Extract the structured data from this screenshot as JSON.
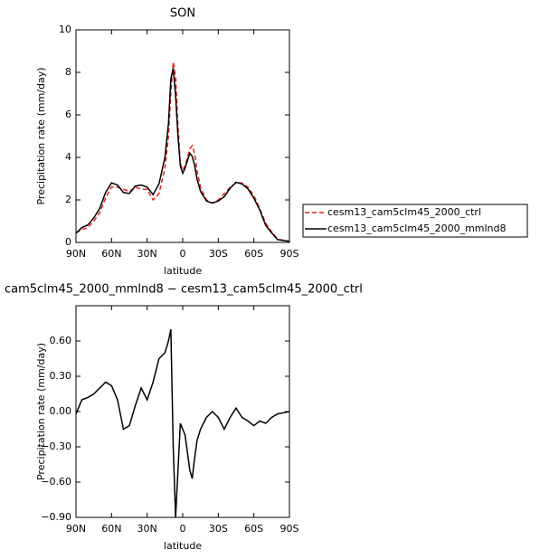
{
  "chart_data": [
    {
      "type": "line",
      "title": "SON",
      "xlabel": "latitude",
      "ylabel": "Precipitation rate (mm/day)",
      "x": [
        90,
        85,
        80,
        75,
        70,
        65,
        60,
        55,
        50,
        45,
        40,
        35,
        30,
        25,
        20,
        15,
        12,
        10,
        8,
        6,
        4,
        2,
        0,
        -2,
        -4,
        -6,
        -8,
        -10,
        -12,
        -15,
        -20,
        -25,
        -30,
        -35,
        -40,
        -45,
        -50,
        -55,
        -60,
        -65,
        -70,
        -75,
        -80,
        -85,
        -90
      ],
      "series": [
        {
          "name": "cesm13_cam5clm45_2000_ctrl",
          "color": "#e8201c",
          "style": "dashed",
          "values": [
            0.45,
            0.6,
            0.7,
            1.0,
            1.4,
            2.1,
            2.6,
            2.6,
            2.5,
            2.4,
            2.6,
            2.5,
            2.5,
            2.0,
            2.3,
            3.5,
            5.0,
            7.0,
            8.5,
            7.8,
            5.5,
            3.7,
            3.4,
            3.6,
            4.0,
            4.4,
            4.55,
            4.2,
            3.4,
            2.6,
            2.0,
            1.85,
            2.0,
            2.3,
            2.6,
            2.8,
            2.8,
            2.6,
            2.2,
            1.6,
            0.9,
            0.5,
            0.15,
            0.1,
            0.05
          ]
        },
        {
          "name": "cesm13_cam5clm45_2000_mmlnd8",
          "color": "#000000",
          "style": "solid",
          "values": [
            0.43,
            0.7,
            0.82,
            1.15,
            1.6,
            2.35,
            2.8,
            2.7,
            2.35,
            2.3,
            2.65,
            2.7,
            2.6,
            2.25,
            2.75,
            4.0,
            5.6,
            7.7,
            8.2,
            6.9,
            5.0,
            3.6,
            3.25,
            3.5,
            3.85,
            4.2,
            4.05,
            3.63,
            3.0,
            2.4,
            1.95,
            1.85,
            1.95,
            2.15,
            2.55,
            2.83,
            2.75,
            2.52,
            2.08,
            1.52,
            0.8,
            0.45,
            0.13,
            0.09,
            0.05
          ]
        }
      ],
      "xlim": [
        90,
        -90
      ],
      "xticks": [
        {
          "value": 90,
          "label": "90N"
        },
        {
          "value": 60,
          "label": "60N"
        },
        {
          "value": 30,
          "label": "30N"
        },
        0,
        {
          "value": -30,
          "label": "30S"
        },
        {
          "value": -60,
          "label": "60S"
        },
        {
          "value": -90,
          "label": "90S"
        }
      ],
      "ylim": [
        0,
        10
      ],
      "yticks": [
        0,
        2,
        4,
        6,
        8,
        10
      ],
      "legend": "right"
    },
    {
      "type": "line",
      "title": "cam5clm45_2000_mmlnd8 − cesm13_cam5clm45_2000_ctrl",
      "xlabel": "latitude",
      "ylabel": "Precipitation rate (mm/day)",
      "x": [
        90,
        85,
        80,
        75,
        70,
        65,
        60,
        55,
        50,
        45,
        40,
        35,
        30,
        25,
        20,
        15,
        12,
        10,
        8,
        6,
        4,
        2,
        0,
        -2,
        -4,
        -6,
        -8,
        -10,
        -12,
        -15,
        -20,
        -25,
        -30,
        -35,
        -40,
        -45,
        -50,
        -55,
        -60,
        -65,
        -70,
        -75,
        -80,
        -85,
        -90
      ],
      "series": [
        {
          "color": "#000000",
          "style": "solid",
          "values": [
            -0.02,
            0.1,
            0.12,
            0.15,
            0.2,
            0.25,
            0.22,
            0.1,
            -0.15,
            -0.12,
            0.05,
            0.2,
            0.1,
            0.25,
            0.45,
            0.5,
            0.6,
            0.7,
            -0.3,
            -0.9,
            -0.5,
            -0.1,
            -0.15,
            -0.2,
            -0.35,
            -0.5,
            -0.57,
            -0.4,
            -0.25,
            -0.15,
            -0.05,
            0.0,
            -0.05,
            -0.15,
            -0.05,
            0.03,
            -0.05,
            -0.08,
            -0.12,
            -0.08,
            -0.1,
            -0.05,
            -0.02,
            -0.01,
            0.0
          ]
        }
      ],
      "xlim": [
        90,
        -90
      ],
      "xticks": [
        {
          "value": 90,
          "label": "90N"
        },
        {
          "value": 60,
          "label": "60N"
        },
        {
          "value": 30,
          "label": "30N"
        },
        0,
        {
          "value": -30,
          "label": "30S"
        },
        {
          "value": -60,
          "label": "60S"
        },
        {
          "value": -90,
          "label": "90S"
        }
      ],
      "ylim": [
        -0.9,
        0.9
      ],
      "yticks": [
        {
          "value": -0.9,
          "label": "−0.90"
        },
        {
          "value": -0.6,
          "label": "−0.60"
        },
        {
          "value": -0.3,
          "label": "−0.30"
        },
        {
          "value": 0,
          "label": "0.00"
        },
        {
          "value": 0.3,
          "label": "0.30"
        },
        {
          "value": 0.6,
          "label": "0.60"
        }
      ]
    }
  ]
}
